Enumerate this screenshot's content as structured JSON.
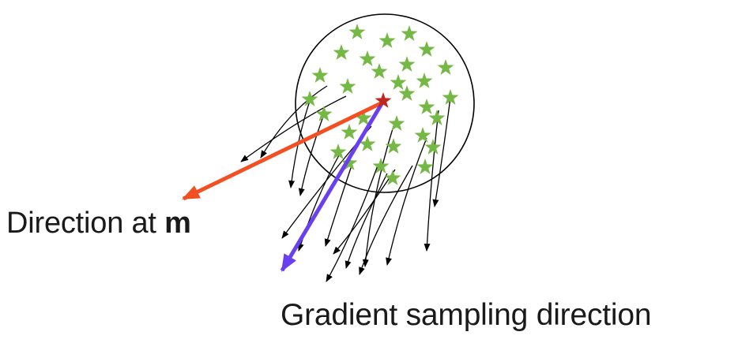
{
  "labels": {
    "direction_at_m_prefix": "Direction at ",
    "direction_at_m_symbol": "m",
    "gradient_sampling_direction": "Gradient sampling direction"
  },
  "colors": {
    "circle": "#000000",
    "sample_star": "#76b845",
    "center_star": "#c0271c",
    "direction_at_m_arrow": "#f25022",
    "gradient_sampling_arrow": "#6a3ff0",
    "sample_gradient_arrows": "#000000"
  },
  "icons": {
    "sample_points": "green-star-icon",
    "center_point": "red-star-icon"
  }
}
